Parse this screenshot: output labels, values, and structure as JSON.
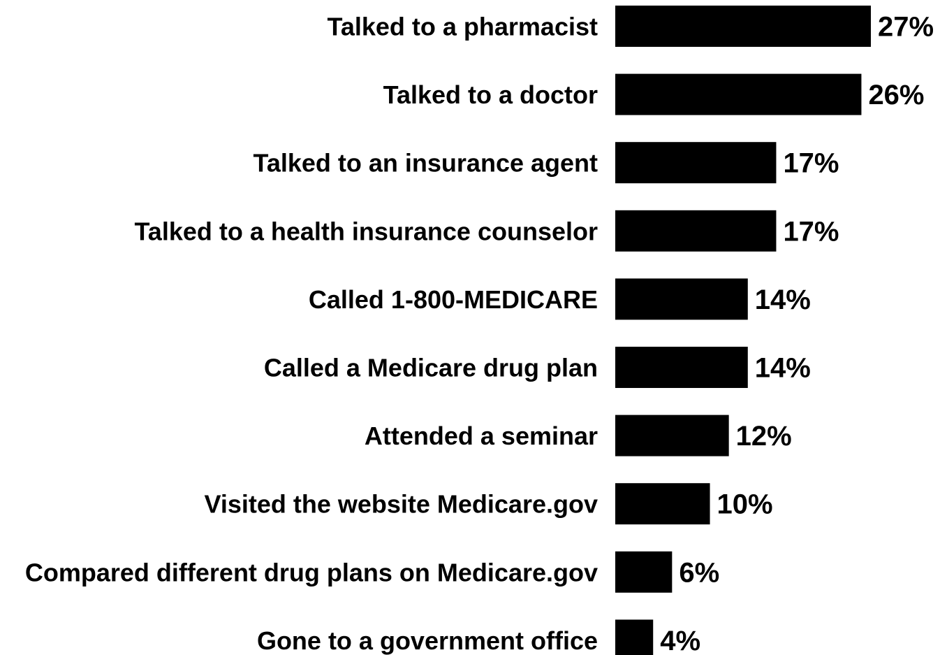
{
  "chart_data": {
    "type": "bar",
    "orientation": "horizontal",
    "categories": [
      "Talked to a pharmacist",
      "Talked to a doctor",
      "Talked to an insurance agent",
      "Talked to a health insurance counselor",
      "Called 1-800-MEDICARE",
      "Called a Medicare drug plan",
      "Attended a seminar",
      "Visited the website Medicare.gov",
      "Compared different drug plans on Medicare.gov",
      "Gone to a government office"
    ],
    "values": [
      27,
      26,
      17,
      17,
      14,
      14,
      12,
      10,
      6,
      4
    ],
    "value_labels": [
      "27%",
      "26%",
      "17%",
      "17%",
      "14%",
      "14%",
      "12%",
      "10%",
      "6%",
      "4%"
    ],
    "title": "",
    "xlabel": "",
    "ylabel": "",
    "xlim": [
      0,
      27
    ],
    "grid": false,
    "legend": "none",
    "bar_color": "#000000"
  }
}
